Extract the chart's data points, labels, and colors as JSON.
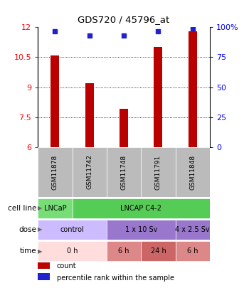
{
  "title": "GDS720 / 45796_at",
  "samples": [
    "GSM11878",
    "GSM11742",
    "GSM11748",
    "GSM11791",
    "GSM11848"
  ],
  "bar_values": [
    10.6,
    9.2,
    7.9,
    11.0,
    11.8
  ],
  "percentile_values": [
    97,
    93,
    93,
    97,
    99
  ],
  "ylim_left": [
    6,
    12
  ],
  "ylim_right": [
    0,
    100
  ],
  "yticks_left": [
    6,
    7.5,
    9,
    10.5,
    12
  ],
  "yticks_right": [
    0,
    25,
    50,
    75,
    100
  ],
  "ytick_labels_right": [
    "0",
    "25",
    "50",
    "75",
    "100%"
  ],
  "dotted_lines": [
    10.5,
    9.0,
    7.5
  ],
  "bar_color": "#bb0000",
  "percentile_color": "#2222cc",
  "cell_line_groups": [
    {
      "label": "LNCaP",
      "start": 0,
      "end": 1,
      "color": "#77dd77"
    },
    {
      "label": "LNCAP C4-2",
      "start": 1,
      "end": 5,
      "color": "#55cc55"
    }
  ],
  "dose_groups": [
    {
      "label": "control",
      "start": 0,
      "end": 2,
      "color": "#ccbbff"
    },
    {
      "label": "1 x 10 Sv",
      "start": 2,
      "end": 4,
      "color": "#9977cc"
    },
    {
      "label": "4 x 2.5 Sv",
      "start": 4,
      "end": 5,
      "color": "#9977cc"
    }
  ],
  "time_groups": [
    {
      "label": "0 h",
      "start": 0,
      "end": 2,
      "color": "#ffdddd"
    },
    {
      "label": "6 h",
      "start": 2,
      "end": 3,
      "color": "#dd8888"
    },
    {
      "label": "24 h",
      "start": 3,
      "end": 4,
      "color": "#cc6666"
    },
    {
      "label": "6 h",
      "start": 4,
      "end": 5,
      "color": "#dd8888"
    }
  ],
  "legend_items": [
    {
      "color": "#bb0000",
      "label": "count"
    },
    {
      "color": "#2222cc",
      "label": "percentile rank within the sample"
    }
  ],
  "sample_box_color": "#bbbbbb",
  "background_color": "#ffffff"
}
